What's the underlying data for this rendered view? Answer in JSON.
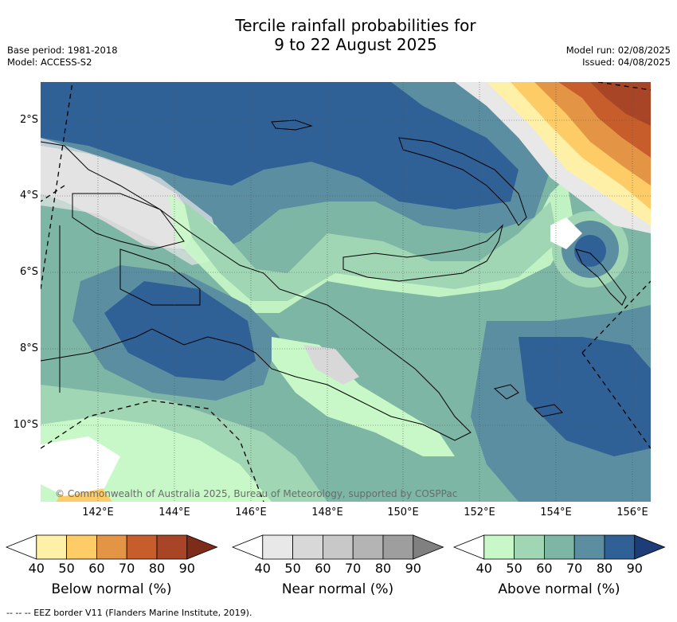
{
  "header": {
    "title_line1": "Tercile rainfall probabilities for",
    "title_line2": "9 to 22 August 2025",
    "base_period": "Base period: 1981-2018",
    "model": "Model: ACCESS-S2",
    "model_run": "Model run: 02/08/2025",
    "issued": "Issued: 04/08/2025"
  },
  "map": {
    "copyright": "© Commonwealth of Australia 2025, Bureau of Meteorology, supported by COSPPac",
    "lon_ticks": [
      "142°E",
      "144°E",
      "146°E",
      "148°E",
      "150°E",
      "152°E",
      "154°E",
      "156°E"
    ],
    "lat_ticks": [
      "2°S",
      "4°S",
      "6°S",
      "8°S",
      "10°S"
    ],
    "colors": {
      "land_outline": "#000000",
      "eez": "#000000",
      "grid": "#555555"
    }
  },
  "colorbars": [
    {
      "label": "Below normal (%)",
      "ticks": [
        "40",
        "50",
        "60",
        "70",
        "80",
        "90"
      ],
      "colors": [
        "#ffffff",
        "#fff0a8",
        "#fdcc66",
        "#e39545",
        "#c65d2b",
        "#a84526",
        "#7d2c1a"
      ]
    },
    {
      "label": "Near normal (%)",
      "ticks": [
        "40",
        "50",
        "60",
        "70",
        "80",
        "90"
      ],
      "colors": [
        "#ffffff",
        "#e8e8e8",
        "#d8d8d8",
        "#c8c8c8",
        "#b4b4b4",
        "#9e9e9e",
        "#808080"
      ]
    },
    {
      "label": "Above normal (%)",
      "ticks": [
        "40",
        "50",
        "60",
        "70",
        "80",
        "90"
      ],
      "colors": [
        "#ffffff",
        "#c8f8c8",
        "#a0d6b4",
        "#7eb6a6",
        "#5a8ea0",
        "#2f6096",
        "#1c3d78"
      ]
    }
  ],
  "footnote": "--  --  -- EEZ border V11 (Flanders Marine Institute, 2019)."
}
